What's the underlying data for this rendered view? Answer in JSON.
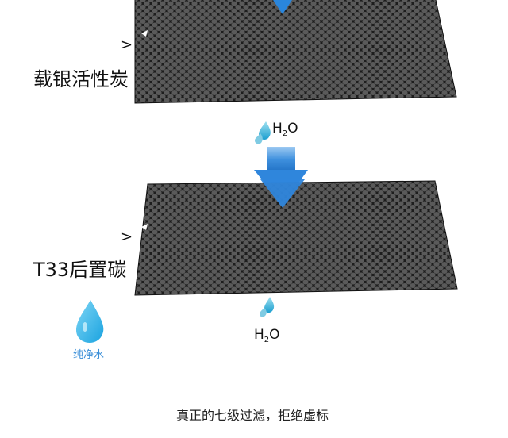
{
  "stages": [
    {
      "marker": ">",
      "label": "载银活性炭"
    },
    {
      "marker": ">",
      "label": "T33后置碳"
    }
  ],
  "flow": [
    {
      "formula_main": "H",
      "formula_sub": "2",
      "formula_tail": "O"
    },
    {
      "formula_main": "H",
      "formula_sub": "2",
      "formula_tail": "O"
    }
  ],
  "pure_water": {
    "label": "纯净水"
  },
  "caption": "真正的七级过滤，拒绝虚标",
  "colors": {
    "water_blue": "#2e8fe0",
    "filter_dark": "#2b2b2b",
    "label_blue": "#3b8fd8"
  }
}
